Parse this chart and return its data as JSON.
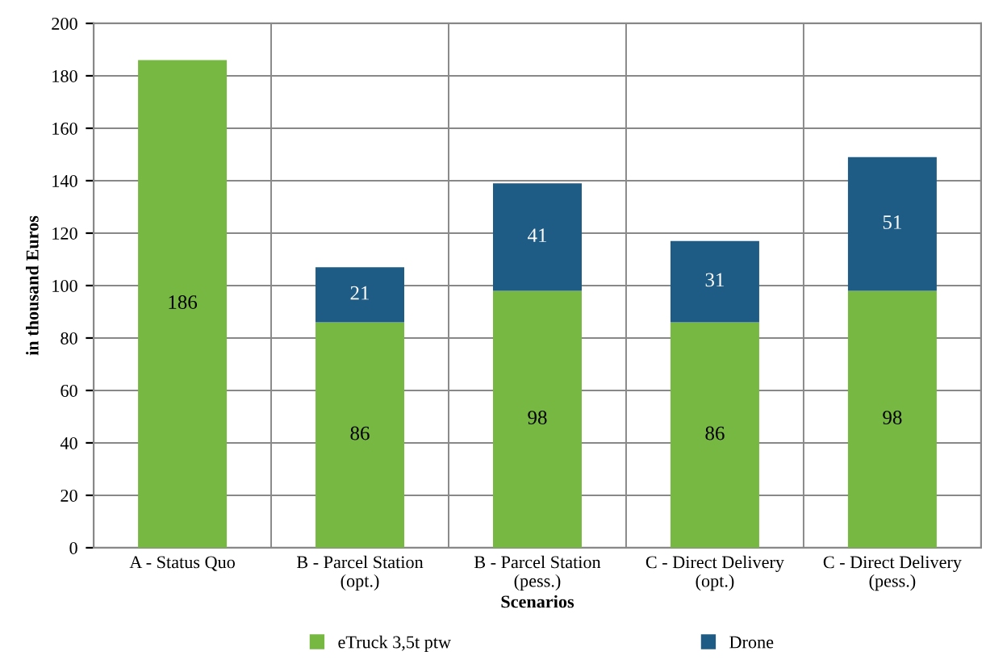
{
  "chart_data": {
    "type": "bar",
    "stacked": true,
    "xlabel": "Scenarios",
    "ylabel": "in thousand Euros",
    "categories": [
      "A - Status Quo",
      "B - Parcel Station\n(opt.)",
      "B - Parcel Station\n(pess.)",
      "C - Direct Delivery\n(opt.)",
      "C - Direct Delivery\n(pess.)"
    ],
    "series": [
      {
        "name": "eTruck 3,5t ptw",
        "color": "#77b843",
        "values": [
          186,
          86,
          98,
          86,
          98
        ],
        "value_labels": [
          "186",
          "86",
          "98",
          "86",
          "98"
        ]
      },
      {
        "name": "Drone",
        "color": "#1f5c85",
        "values": [
          null,
          21,
          41,
          31,
          51
        ],
        "value_labels": [
          null,
          "21",
          "41",
          "31",
          "51"
        ]
      }
    ],
    "ylim": [
      0,
      200
    ],
    "yticks": [
      0,
      20,
      40,
      60,
      80,
      100,
      120,
      140,
      160,
      180,
      200
    ],
    "grid": true,
    "legend": "bottom"
  }
}
